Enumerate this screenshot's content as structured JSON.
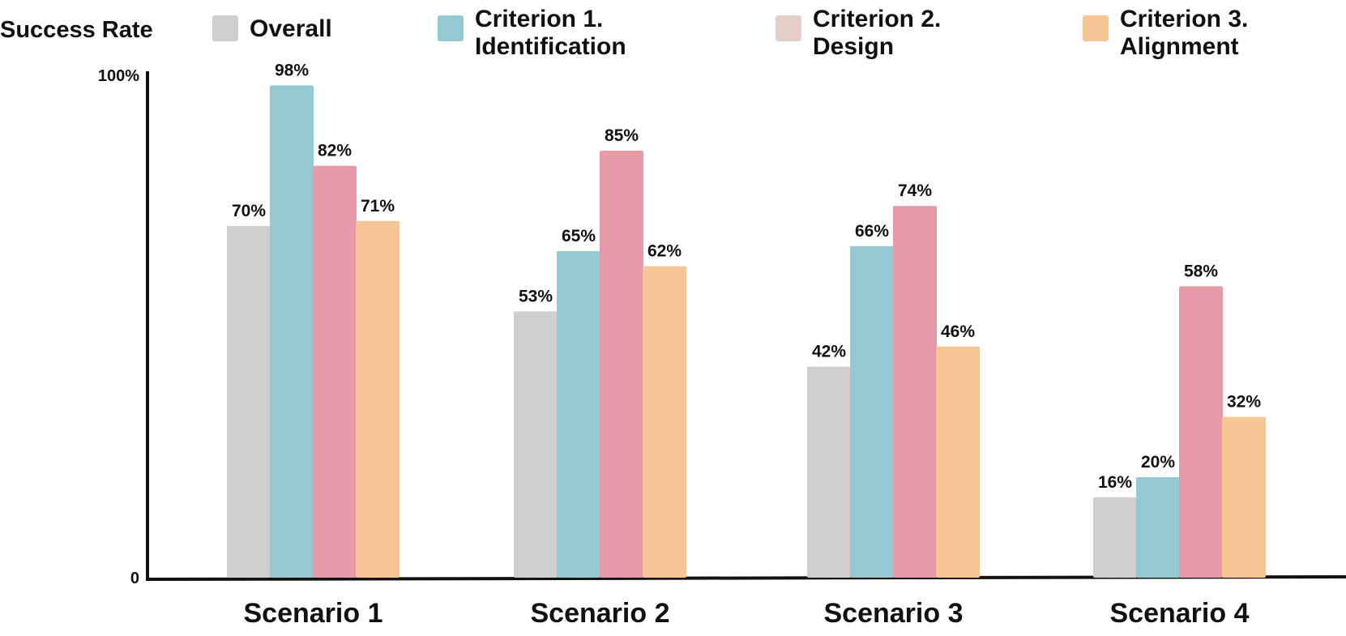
{
  "chart_data": {
    "type": "bar",
    "ylabel": "Success Rate",
    "ylim": [
      0,
      100
    ],
    "y_ticks": [
      {
        "value": 100,
        "label": "100%"
      },
      {
        "value": 0,
        "label": "0"
      }
    ],
    "categories": [
      "Scenario 1",
      "Scenario 2",
      "Scenario 3",
      "Scenario 4"
    ],
    "series": [
      {
        "name": "Overall",
        "color": "#cfcfcf",
        "values": [
          70,
          53,
          42,
          16
        ],
        "labels": [
          "70%",
          "53%",
          "42%",
          "16%"
        ]
      },
      {
        "name": "Criterion 1. Identification",
        "legend_lines": [
          "Criterion 1.",
          "Identification"
        ],
        "color": "#92c9d2",
        "values": [
          98,
          65,
          66,
          20
        ],
        "labels": [
          "98%",
          "65%",
          "66%",
          "20%"
        ]
      },
      {
        "name": "Criterion 2. Design",
        "legend_lines": [
          "Criterion 2.",
          "Design"
        ],
        "color": "#e69aa7",
        "legend_color": "#e3cfc7",
        "values": [
          82,
          85,
          74,
          58
        ],
        "labels": [
          "82%",
          "85%",
          "74%",
          "58%"
        ]
      },
      {
        "name": "Criterion 3. Alignment",
        "legend_lines": [
          "Criterion 3.",
          "Alignment"
        ],
        "color": "#f5c593",
        "values": [
          71,
          62,
          46,
          32
        ],
        "labels": [
          "71%",
          "62%",
          "46%",
          "32%"
        ]
      }
    ],
    "grid": false,
    "legend_position": "top"
  }
}
